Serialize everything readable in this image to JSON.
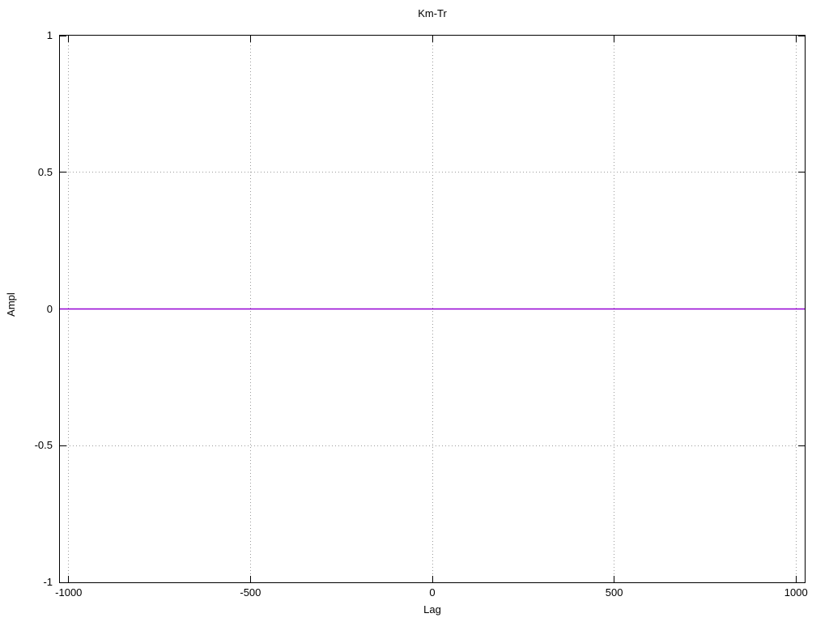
{
  "chart_data": {
    "type": "line",
    "title": "Km-Tr",
    "xlabel": "Lag",
    "ylabel": "Ampl",
    "xlim": [
      -1024,
      1024
    ],
    "ylim": [
      -1,
      1
    ],
    "grid": true,
    "legend": "none",
    "xticks": [
      {
        "value": -1000,
        "label": "-1000"
      },
      {
        "value": -500,
        "label": "-500"
      },
      {
        "value": 0,
        "label": "0"
      },
      {
        "value": 500,
        "label": "500"
      },
      {
        "value": 1000,
        "label": "1000"
      }
    ],
    "yticks": [
      {
        "value": -1,
        "label": "-1"
      },
      {
        "value": -0.5,
        "label": "-0.5"
      },
      {
        "value": 0,
        "label": "0"
      },
      {
        "value": 0.5,
        "label": "0.5"
      },
      {
        "value": 1,
        "label": "1"
      }
    ],
    "colors": {
      "background": "#ffffff",
      "axis": "#000000",
      "grid": "#9b9b9b",
      "series": "#9400d3"
    },
    "series": [
      {
        "name": "Km-Tr",
        "color": "#9400d3",
        "points": [
          {
            "x": -1024,
            "y": 0
          },
          {
            "x": 1024,
            "y": 0
          }
        ]
      }
    ]
  }
}
